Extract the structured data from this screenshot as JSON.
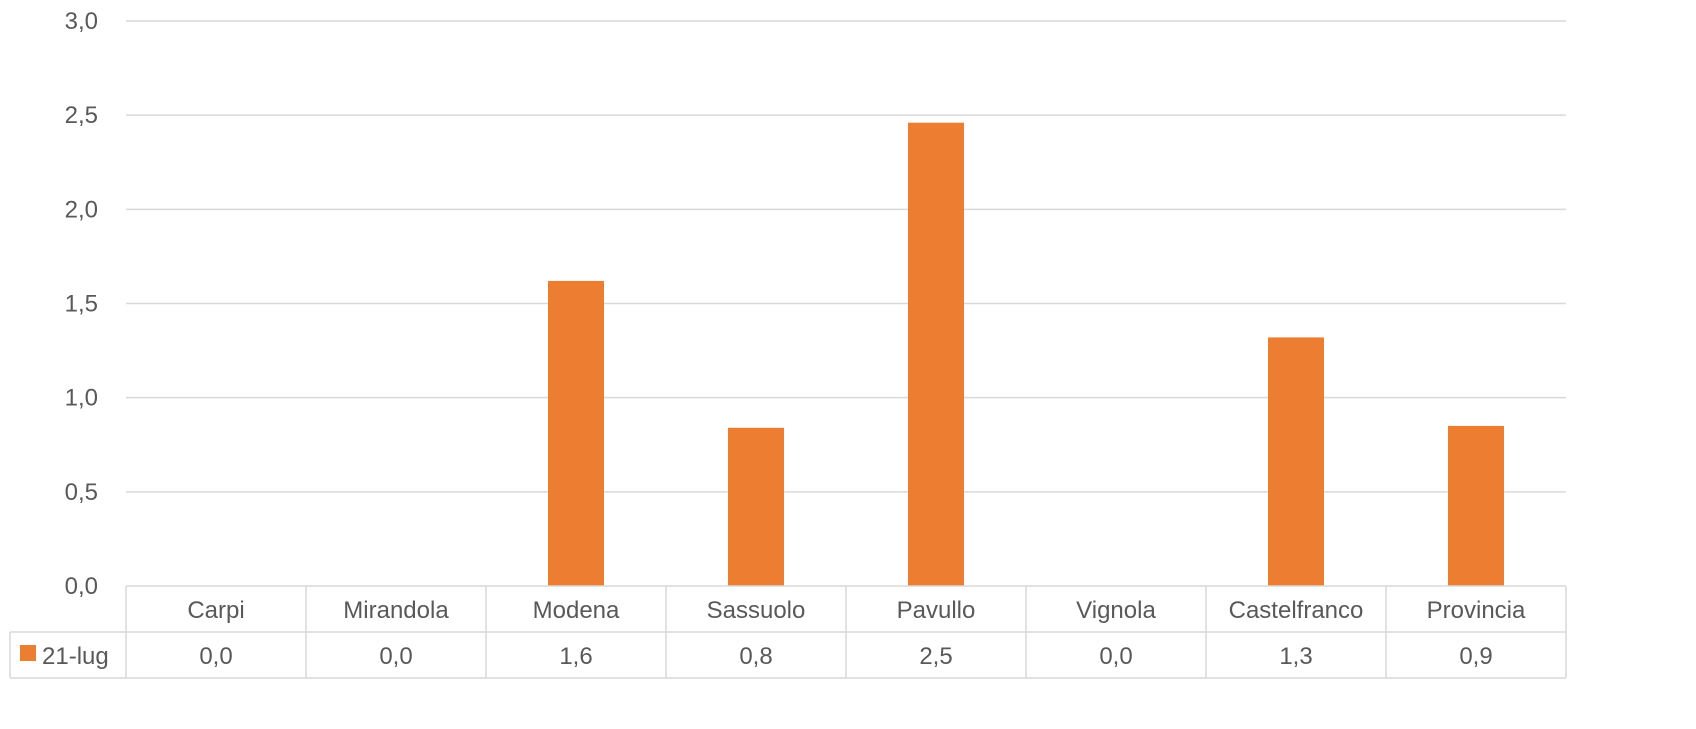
{
  "chart_data": {
    "type": "bar",
    "categories": [
      "Carpi",
      "Mirandola",
      "Modena",
      "Sassuolo",
      "Pavullo",
      "Vignola",
      "Castelfranco",
      "Provincia"
    ],
    "series": [
      {
        "name": "21-lug",
        "color": "#ED7D31",
        "values": [
          0.0,
          0.0,
          1.62,
          0.84,
          2.46,
          0.0,
          1.32,
          0.85
        ],
        "table_labels": [
          "0,0",
          "0,0",
          "1,6",
          "0,8",
          "2,5",
          "0,0",
          "1,3",
          "0,9"
        ]
      }
    ],
    "ylim": [
      0,
      3.0
    ],
    "yticks": [
      "0,0",
      "0,5",
      "1,0",
      "1,5",
      "2,0",
      "2,5",
      "3,0"
    ],
    "yticks_values": [
      0,
      0.5,
      1.0,
      1.5,
      2.0,
      2.5,
      3.0
    ],
    "grid": true,
    "legend": "data-table",
    "title": "",
    "xlabel": "",
    "ylabel": ""
  }
}
